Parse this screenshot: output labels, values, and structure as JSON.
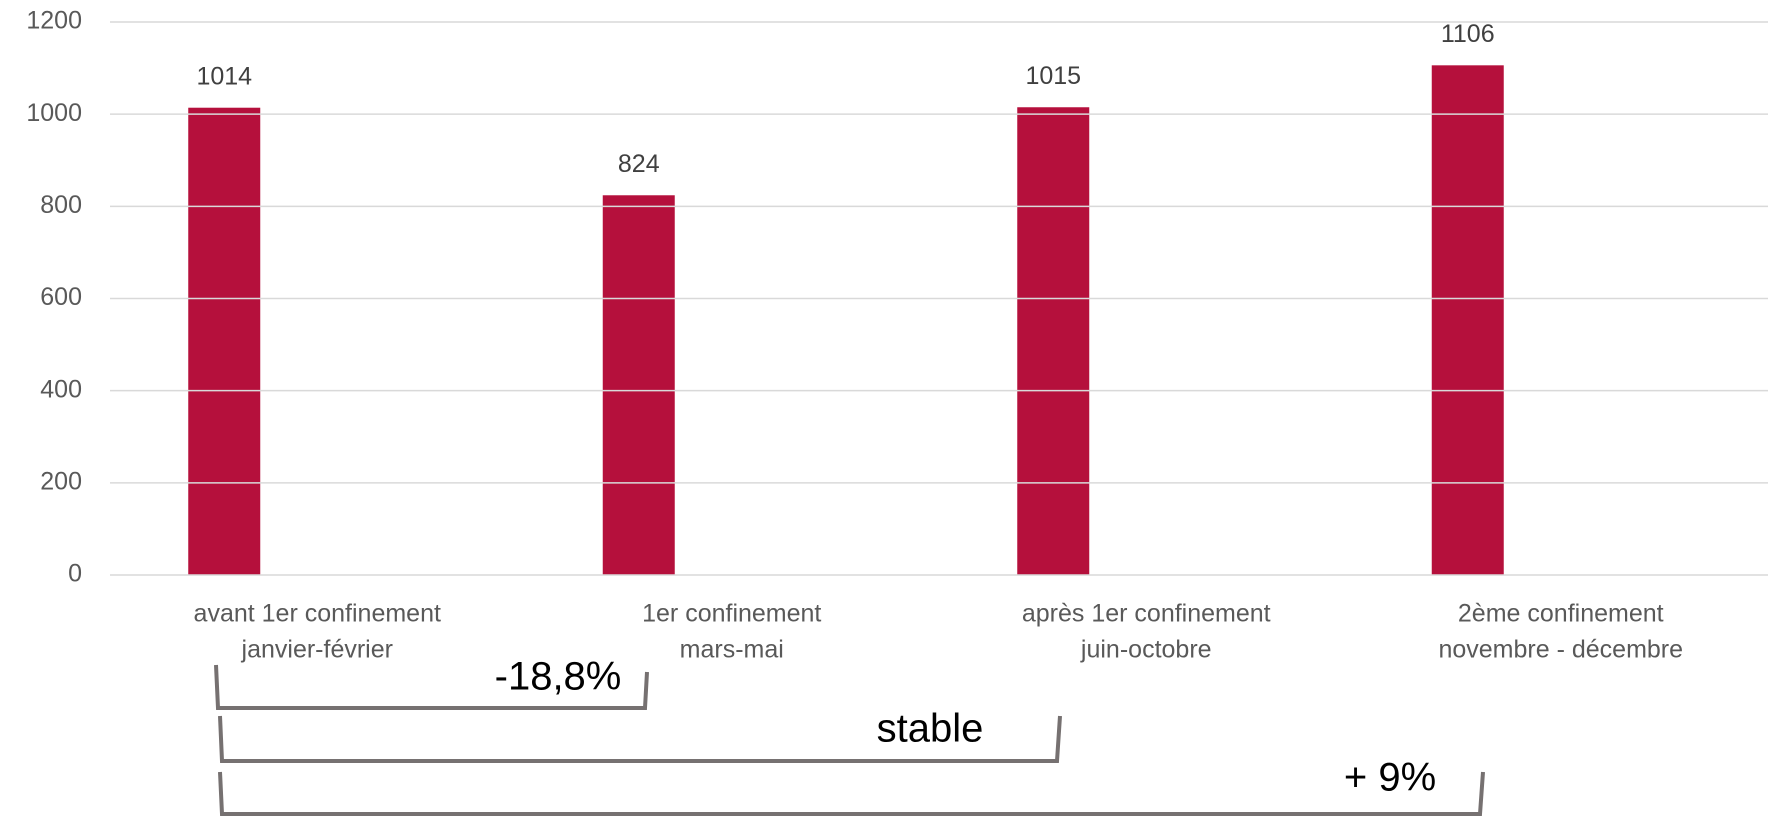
{
  "chart_data": {
    "type": "bar",
    "categories": [
      [
        "avant 1er confinement",
        "janvier-février"
      ],
      [
        "1er confinement",
        "mars-mai"
      ],
      [
        "après 1er confinement",
        "juin-octobre"
      ],
      [
        "2ème confinement",
        "novembre - décembre"
      ]
    ],
    "values": [
      1014,
      824,
      1015,
      1106
    ],
    "color": "#b5103c",
    "ylim": [
      0,
      1200
    ],
    "yticks": [
      0,
      200,
      400,
      600,
      800,
      1000,
      1200
    ],
    "grid": true,
    "annotations": [
      "-18,8%",
      "stable",
      "+ 9%"
    ]
  }
}
